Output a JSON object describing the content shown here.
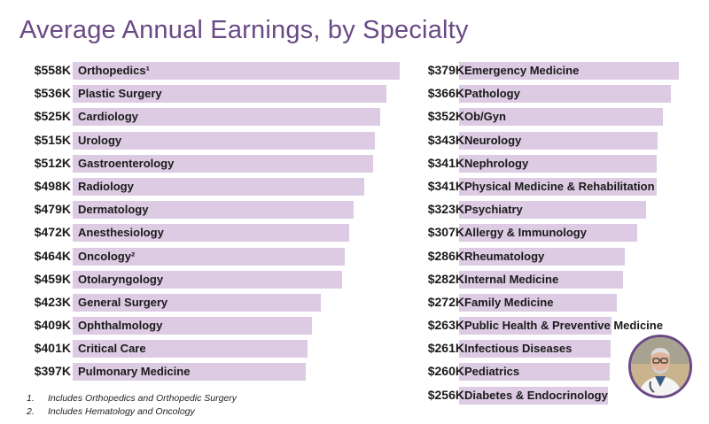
{
  "title": "Average Annual Earnings, by Specialty",
  "colors": {
    "title": "#6a4a85",
    "bar": "#dccbe3",
    "text": "#1a1a1a"
  },
  "chart_data": {
    "type": "bar",
    "orientation": "horizontal",
    "title": "Average Annual Earnings, by Specialty",
    "unit": "$K",
    "columns": [
      {
        "name": "left",
        "items": [
          {
            "label": "Orthopedics¹",
            "value": 558,
            "display": "$558K"
          },
          {
            "label": "Plastic Surgery",
            "value": 536,
            "display": "$536K"
          },
          {
            "label": "Cardiology",
            "value": 525,
            "display": "$525K"
          },
          {
            "label": "Urology",
            "value": 515,
            "display": "$515K"
          },
          {
            "label": "Gastroenterology",
            "value": 512,
            "display": "$512K"
          },
          {
            "label": "Radiology",
            "value": 498,
            "display": "$498K"
          },
          {
            "label": "Dermatology",
            "value": 479,
            "display": "$479K"
          },
          {
            "label": "Anesthesiology",
            "value": 472,
            "display": "$472K"
          },
          {
            "label": "Oncology²",
            "value": 464,
            "display": "$464K"
          },
          {
            "label": "Otolaryngology",
            "value": 459,
            "display": "$459K"
          },
          {
            "label": "General Surgery",
            "value": 423,
            "display": "$423K"
          },
          {
            "label": "Ophthalmology",
            "value": 409,
            "display": "$409K"
          },
          {
            "label": "Critical Care",
            "value": 401,
            "display": "$401K"
          },
          {
            "label": "Pulmonary Medicine",
            "value": 397,
            "display": "$397K"
          }
        ]
      },
      {
        "name": "right",
        "items": [
          {
            "label": "Emergency Medicine",
            "value": 379,
            "display": "$379K"
          },
          {
            "label": "Pathology",
            "value": 366,
            "display": "$366K"
          },
          {
            "label": "Ob/Gyn",
            "value": 352,
            "display": "$352K"
          },
          {
            "label": "Neurology",
            "value": 343,
            "display": "$343K"
          },
          {
            "label": "Nephrology",
            "value": 341,
            "display": "$341K"
          },
          {
            "label": "Physical Medicine & Rehabilitation",
            "value": 341,
            "display": "$341K"
          },
          {
            "label": "Psychiatry",
            "value": 323,
            "display": "$323K"
          },
          {
            "label": "Allergy & Immunology",
            "value": 307,
            "display": "$307K"
          },
          {
            "label": "Rheumatology",
            "value": 286,
            "display": "$286K"
          },
          {
            "label": "Internal Medicine",
            "value": 282,
            "display": "$282K"
          },
          {
            "label": "Family Medicine",
            "value": 272,
            "display": "$272K"
          },
          {
            "label": "Public Health & Preventive Medicine",
            "value": 263,
            "display": "$263K"
          },
          {
            "label": "Infectious Diseases",
            "value": 261,
            "display": "$261K"
          },
          {
            "label": "Pediatrics",
            "value": 260,
            "display": "$260K"
          },
          {
            "label": "Diabetes & Endocrinology",
            "value": 256,
            "display": "$256K"
          }
        ]
      }
    ]
  },
  "footnotes": [
    {
      "num": "1.",
      "text": "Includes Orthopedics and Orthopedic Surgery"
    },
    {
      "num": "2.",
      "text": "Includes Hematology and Oncology"
    }
  ]
}
